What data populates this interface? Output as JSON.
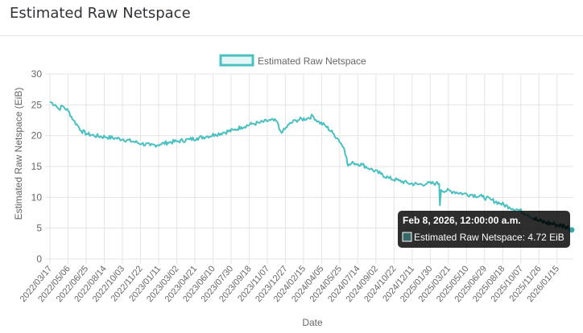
{
  "card": {
    "title": "Estimated Raw Netspace"
  },
  "colors": {
    "series": "#4bc0c0",
    "grid": "#e5e5e5",
    "text": "#666666",
    "tooltip_bg": "rgba(0,0,0,0.82)"
  },
  "tooltip": {
    "title": "Feb 8, 2026, 12:00:00 a.m.",
    "body": "Estimated Raw Netspace: 4.72 EiB"
  },
  "chart_data": {
    "type": "line",
    "title": "",
    "xlabel": "Date",
    "ylabel": "Estimated Raw Netspace (EiB)",
    "ylim": [
      0,
      30
    ],
    "yticks": [
      0,
      5,
      10,
      15,
      20,
      25,
      30
    ],
    "grid": true,
    "legend": "top-center",
    "xlim": [
      "2022-03-17",
      "2026-02-08"
    ],
    "x_tick_labels": [
      "2022/03/17",
      "2022/05/06",
      "2022/06/25",
      "2022/08/14",
      "2022/10/03",
      "2022/11/22",
      "2023/01/11",
      "2023/03/02",
      "2023/04/21",
      "2023/06/10",
      "2023/07/30",
      "2023/09/18",
      "2023/11/07",
      "2023/12/27",
      "2024/02/15",
      "2024/04/05",
      "2024/05/25",
      "2024/07/14",
      "2024/09/02",
      "2024/10/22",
      "2024/12/11",
      "2025/01/30",
      "2025/03/21",
      "2025/05/10",
      "2025/06/29",
      "2025/08/18",
      "2025/10/07",
      "2025/11/26",
      "2026/01/15"
    ],
    "series": [
      {
        "name": "Estimated Raw Netspace",
        "points": [
          [
            "2022-03-17",
            25.5
          ],
          [
            "2022-04-01",
            25.0
          ],
          [
            "2022-04-10",
            24.3
          ],
          [
            "2022-04-20",
            24.8
          ],
          [
            "2022-05-06",
            24.0
          ],
          [
            "2022-05-20",
            22.5
          ],
          [
            "2022-06-01",
            21.6
          ],
          [
            "2022-06-10",
            20.8
          ],
          [
            "2022-06-25",
            20.3
          ],
          [
            "2022-07-15",
            20.0
          ],
          [
            "2022-08-14",
            19.8
          ],
          [
            "2022-09-10",
            19.6
          ],
          [
            "2022-10-03",
            19.4
          ],
          [
            "2022-11-01",
            19.0
          ],
          [
            "2022-11-22",
            18.7
          ],
          [
            "2022-12-15",
            18.4
          ],
          [
            "2023-01-11",
            18.6
          ],
          [
            "2023-02-01",
            18.9
          ],
          [
            "2023-03-02",
            19.1
          ],
          [
            "2023-04-01",
            19.4
          ],
          [
            "2023-04-21",
            19.6
          ],
          [
            "2023-05-20",
            19.9
          ],
          [
            "2023-06-10",
            20.2
          ],
          [
            "2023-07-01",
            20.5
          ],
          [
            "2023-07-30",
            20.9
          ],
          [
            "2023-08-20",
            21.4
          ],
          [
            "2023-09-18",
            21.9
          ],
          [
            "2023-10-10",
            22.1
          ],
          [
            "2023-11-07",
            22.5
          ],
          [
            "2023-11-25",
            22.3
          ],
          [
            "2023-12-01",
            21.0
          ],
          [
            "2023-12-10",
            20.6
          ],
          [
            "2023-12-27",
            21.8
          ],
          [
            "2024-01-15",
            22.5
          ],
          [
            "2024-02-15",
            22.8
          ],
          [
            "2024-03-01",
            23.2
          ],
          [
            "2024-03-15",
            22.3
          ],
          [
            "2024-04-05",
            21.6
          ],
          [
            "2024-04-25",
            20.4
          ],
          [
            "2024-05-10",
            19.4
          ],
          [
            "2024-05-25",
            18.0
          ],
          [
            "2024-06-01",
            16.5
          ],
          [
            "2024-06-05",
            15.1
          ],
          [
            "2024-06-20",
            15.6
          ],
          [
            "2024-07-14",
            15.3
          ],
          [
            "2024-08-05",
            14.6
          ],
          [
            "2024-09-02",
            13.8
          ],
          [
            "2024-09-25",
            13.1
          ],
          [
            "2024-10-22",
            12.7
          ],
          [
            "2024-11-15",
            12.3
          ],
          [
            "2024-12-11",
            12.1
          ],
          [
            "2025-01-05",
            12.2
          ],
          [
            "2025-01-30",
            12.3
          ],
          [
            "2025-02-08",
            12.2
          ],
          [
            "2025-02-10",
            8.7
          ],
          [
            "2025-02-13",
            11.2
          ],
          [
            "2025-03-21",
            10.9
          ],
          [
            "2025-04-15",
            10.6
          ],
          [
            "2025-05-10",
            10.4
          ],
          [
            "2025-06-05",
            10.1
          ],
          [
            "2025-06-29",
            9.6
          ],
          [
            "2025-07-25",
            9.0
          ],
          [
            "2025-08-18",
            8.4
          ],
          [
            "2025-09-15",
            7.9
          ],
          [
            "2025-10-07",
            7.2
          ],
          [
            "2025-11-01",
            6.3
          ],
          [
            "2025-11-26",
            5.9
          ],
          [
            "2025-12-20",
            5.6
          ],
          [
            "2026-01-15",
            5.3
          ],
          [
            "2026-02-08",
            4.72
          ]
        ]
      }
    ]
  }
}
